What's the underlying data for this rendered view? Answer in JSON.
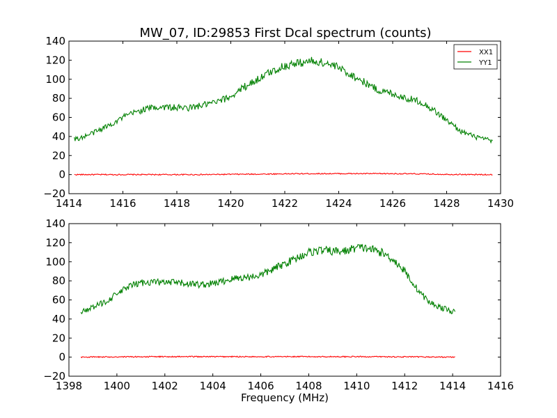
{
  "figure_title": "MW_07, ID:29853 First Dcal spectrum (counts)",
  "xlabel": "Frequency (MHz)",
  "chart_data": [
    {
      "type": "line",
      "panel": "top",
      "title": "MW_07, ID:29853 First Dcal spectrum (counts)",
      "xlabel": "",
      "ylabel": "",
      "xlim": [
        1414,
        1430
      ],
      "ylim": [
        -20,
        140
      ],
      "xticks": [
        1414,
        1416,
        1418,
        1420,
        1422,
        1424,
        1426,
        1428,
        1430
      ],
      "yticks": [
        -20,
        0,
        20,
        40,
        60,
        80,
        100,
        120,
        140
      ],
      "legend": {
        "position": "top-right",
        "entries": [
          "XX1",
          "YY1"
        ]
      },
      "grid": false,
      "series": [
        {
          "name": "XX1",
          "color": "#ff0000",
          "x": [
            1414.2,
            1415,
            1416,
            1417,
            1418,
            1419,
            1420,
            1421,
            1422,
            1423,
            1424,
            1425,
            1426,
            1427,
            1428,
            1429,
            1429.7
          ],
          "y": [
            0,
            0,
            0,
            0,
            0,
            0,
            0.3,
            0.5,
            0.8,
            1,
            1,
            1,
            1,
            0.7,
            0.3,
            0,
            0
          ]
        },
        {
          "name": "YY1",
          "color": "#008000",
          "x": [
            1414.2,
            1414.5,
            1415,
            1415.5,
            1416,
            1416.5,
            1417,
            1417.5,
            1418,
            1418.5,
            1419,
            1419.5,
            1420,
            1420.5,
            1421,
            1421.5,
            1422,
            1422.5,
            1423,
            1423.5,
            1424,
            1424.5,
            1425,
            1425.5,
            1426,
            1426.5,
            1427,
            1427.5,
            1428,
            1428.5,
            1429,
            1429.7
          ],
          "y": [
            37,
            39,
            45,
            52,
            60,
            66,
            70,
            71,
            70,
            70,
            73,
            76,
            82,
            92,
            100,
            108,
            114,
            117,
            119,
            117,
            112,
            104,
            96,
            88,
            85,
            80,
            77,
            68,
            57,
            46,
            40,
            35
          ]
        }
      ]
    },
    {
      "type": "line",
      "panel": "bottom",
      "title": "",
      "xlabel": "Frequency (MHz)",
      "ylabel": "",
      "xlim": [
        1398,
        1416
      ],
      "ylim": [
        -20,
        140
      ],
      "xticks": [
        1398,
        1400,
        1402,
        1404,
        1406,
        1408,
        1410,
        1412,
        1414,
        1416
      ],
      "yticks": [
        -20,
        0,
        20,
        40,
        60,
        80,
        100,
        120,
        140
      ],
      "grid": false,
      "series": [
        {
          "name": "XX1",
          "color": "#ff0000",
          "x": [
            1398.5,
            1400,
            1402,
            1404,
            1406,
            1408,
            1410,
            1412,
            1414.1
          ],
          "y": [
            0,
            0.3,
            0.5,
            0.5,
            0.5,
            0.5,
            0.5,
            0.3,
            0
          ]
        },
        {
          "name": "YY1",
          "color": "#008000",
          "x": [
            1398.5,
            1399,
            1399.5,
            1400,
            1400.5,
            1401,
            1401.5,
            1402,
            1402.5,
            1403,
            1403.5,
            1404,
            1404.5,
            1405,
            1405.5,
            1406,
            1406.5,
            1407,
            1407.5,
            1408,
            1408.5,
            1409,
            1409.5,
            1410,
            1410.5,
            1411,
            1411.5,
            1412,
            1412.5,
            1413,
            1413.5,
            1414.1
          ],
          "y": [
            48,
            52,
            58,
            66,
            74,
            78,
            79,
            78,
            78,
            77,
            76,
            77,
            80,
            83,
            84,
            86,
            92,
            98,
            104,
            110,
            112,
            111,
            111,
            115,
            114,
            110,
            103,
            90,
            72,
            58,
            52,
            47
          ]
        }
      ]
    }
  ]
}
